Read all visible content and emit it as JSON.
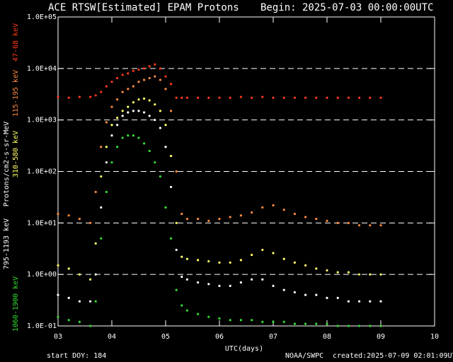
{
  "chart_data": {
    "type": "scatter",
    "title": "ACE RTSW[Estimated] EPAM Protons",
    "subtitle": "Begin: 2025-07-03 00:00:00UTC",
    "x_label": "UTC(days)",
    "y_label": "Protons/cm2-s-sr-MeV",
    "footer_left": "start DOY:  184",
    "footer_center": "NOAA/SWPC",
    "footer_right": "created:2025-07-09 02:01:09UTC",
    "log_y": true,
    "grid": true,
    "xlim": [
      3,
      10
    ],
    "xticks": [
      {
        "value": 3,
        "label": "03"
      },
      {
        "value": 4,
        "label": "04"
      },
      {
        "value": 5,
        "label": "05"
      },
      {
        "value": 6,
        "label": "06"
      },
      {
        "value": 7,
        "label": "07"
      },
      {
        "value": 8,
        "label": "08"
      },
      {
        "value": 9,
        "label": "09"
      },
      10
    ],
    "ylim": [
      0.1,
      100000
    ],
    "yticks": [
      {
        "value": 0.1,
        "label": "1.0E-01"
      },
      {
        "value": 1,
        "label": "1.0E+00"
      },
      {
        "value": 10,
        "label": "1.0E+01"
      },
      {
        "value": 100,
        "label": "1.0E+02"
      },
      {
        "value": 1000,
        "label": "1.0E+03"
      },
      {
        "value": 10000,
        "label": "1.0E+04"
      },
      {
        "value": 100000,
        "label": "1.0E+05"
      }
    ],
    "x": [
      3.0,
      3.2,
      3.4,
      3.6,
      3.7,
      3.8,
      3.9,
      4.0,
      4.1,
      4.2,
      4.3,
      4.4,
      4.5,
      4.6,
      4.7,
      4.8,
      4.9,
      5.0,
      5.1,
      5.2,
      5.3,
      5.4,
      5.6,
      5.8,
      6.0,
      6.2,
      6.4,
      6.6,
      6.8,
      7.0,
      7.2,
      7.4,
      7.6,
      7.8,
      8.0,
      8.2,
      8.4,
      8.6,
      8.8,
      9.0
    ],
    "series": [
      {
        "name": "47-68 keV",
        "color": "#ff3a1a",
        "values": [
          2800,
          2700,
          2800,
          2800,
          3000,
          3500,
          4500,
          5500,
          6500,
          7500,
          8000,
          9000,
          9500,
          10000,
          11000,
          12000,
          10000,
          7000,
          5000,
          2700,
          2700,
          2700,
          2700,
          2700,
          2700,
          2700,
          2800,
          2700,
          2800,
          2700,
          2700,
          2700,
          2700,
          2700,
          2700,
          2700,
          2700,
          2700,
          2700,
          2700
        ]
      },
      {
        "name": "115-195 keV",
        "color": "#ff8a40",
        "values": [
          15,
          14,
          12,
          10,
          40,
          300,
          900,
          1800,
          2500,
          3500,
          4000,
          4500,
          5500,
          6000,
          6500,
          7000,
          6000,
          4000,
          1500,
          100,
          15,
          12,
          12,
          11,
          12,
          13,
          14,
          16,
          20,
          22,
          18,
          15,
          13,
          12,
          11,
          10,
          10,
          9,
          9,
          9
        ]
      },
      {
        "name": "310-580 keV",
        "color": "#ffff66",
        "values": [
          1.5,
          1.3,
          1.0,
          0.8,
          4,
          80,
          300,
          800,
          1100,
          1500,
          1800,
          2200,
          2500,
          2600,
          2400,
          2000,
          1500,
          800,
          200,
          10,
          2.2,
          2.0,
          1.9,
          1.8,
          1.7,
          1.7,
          1.9,
          2.4,
          3.0,
          2.6,
          2.0,
          1.7,
          1.5,
          1.3,
          1.2,
          1.1,
          1.1,
          1.0,
          1.0,
          1.0
        ]
      },
      {
        "name": "795-1193 keV",
        "color": "#ffffff",
        "values": [
          0.4,
          0.35,
          0.3,
          0.3,
          1,
          20,
          150,
          500,
          800,
          1200,
          1400,
          1500,
          1500,
          1400,
          1200,
          1000,
          700,
          300,
          50,
          3,
          0.9,
          0.8,
          0.7,
          0.65,
          0.6,
          0.6,
          0.7,
          0.8,
          0.8,
          0.6,
          0.5,
          0.45,
          0.4,
          0.4,
          0.35,
          0.35,
          0.3,
          0.3,
          0.3,
          0.3
        ]
      },
      {
        "name": "1060-1900 keV",
        "color": "#33dd33",
        "values": [
          0.15,
          0.13,
          0.12,
          0.1,
          0.3,
          5,
          40,
          150,
          300,
          450,
          500,
          500,
          450,
          350,
          250,
          150,
          80,
          20,
          5,
          0.5,
          0.25,
          0.2,
          0.17,
          0.15,
          0.14,
          0.13,
          0.13,
          0.13,
          0.12,
          0.12,
          0.12,
          0.11,
          0.11,
          0.11,
          0.11,
          0.1,
          0.1,
          0.1,
          0.1,
          0.1
        ]
      }
    ]
  }
}
